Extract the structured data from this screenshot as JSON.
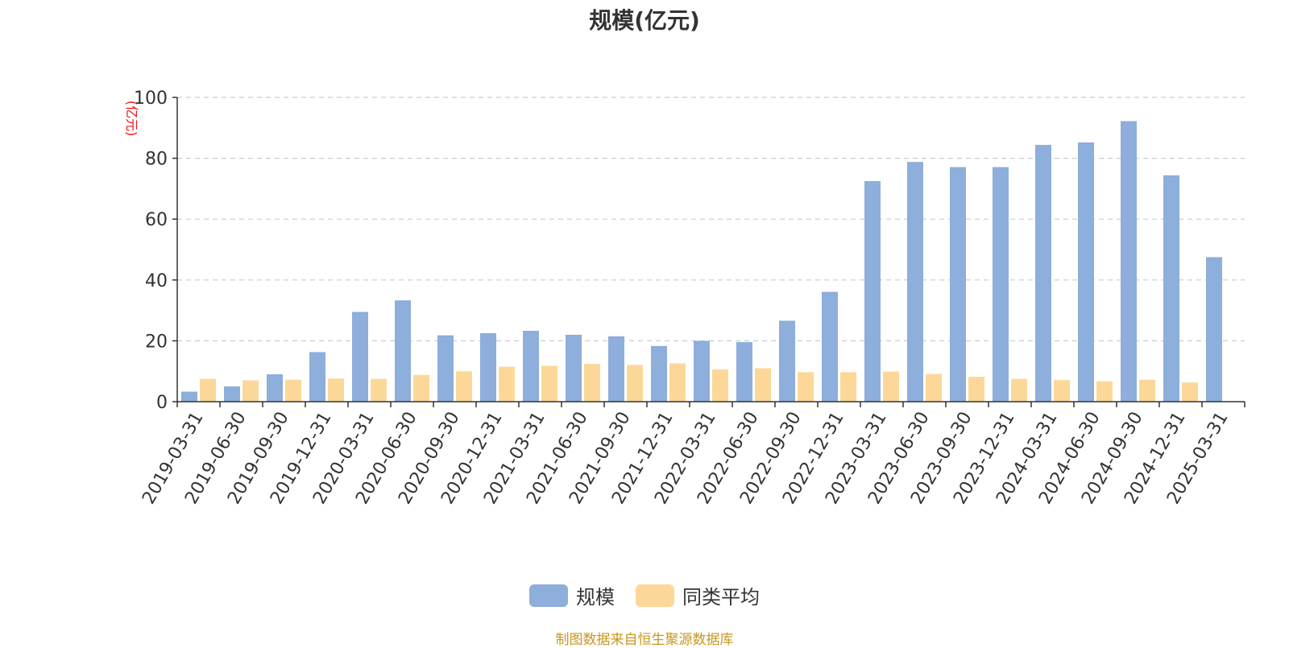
{
  "title": "规模(亿元)",
  "source": "制图数据来自恒生聚源数据库",
  "chart_data": {
    "type": "bar",
    "title": "规模(亿元)",
    "ylabel": "(亿元)",
    "ylim": [
      0,
      100
    ],
    "yticks": [
      0,
      20,
      40,
      60,
      80,
      100
    ],
    "grid": true,
    "legend_position": "bottom-center",
    "categories": [
      "2019-03-31",
      "2019-06-30",
      "2019-09-30",
      "2019-12-31",
      "2020-03-31",
      "2020-06-30",
      "2020-09-30",
      "2020-12-31",
      "2021-03-31",
      "2021-06-30",
      "2021-09-30",
      "2021-12-31",
      "2022-03-31",
      "2022-06-30",
      "2022-09-30",
      "2022-12-31",
      "2023-03-31",
      "2023-06-30",
      "2023-09-30",
      "2023-12-31",
      "2024-03-31",
      "2024-06-30",
      "2024-09-30",
      "2024-12-31",
      "2025-03-31"
    ],
    "series": [
      {
        "name": "规模",
        "color": "#8eaedb",
        "values": [
          3.3,
          5.0,
          9.0,
          16.3,
          29.5,
          33.3,
          21.8,
          22.5,
          23.3,
          22.0,
          21.5,
          18.3,
          20.0,
          19.6,
          26.6,
          36.1,
          72.5,
          78.8,
          77.1,
          77.1,
          84.4,
          85.2,
          92.2,
          74.4,
          47.5
        ]
      },
      {
        "name": "同类平均",
        "color": "#fcd898",
        "values": [
          7.5,
          7.0,
          7.2,
          7.6,
          7.5,
          8.8,
          10.0,
          11.5,
          11.8,
          12.4,
          12.1,
          12.6,
          10.6,
          11.0,
          9.7,
          9.7,
          9.9,
          9.1,
          8.2,
          7.5,
          7.1,
          6.7,
          7.2,
          6.3,
          0
        ]
      }
    ]
  }
}
